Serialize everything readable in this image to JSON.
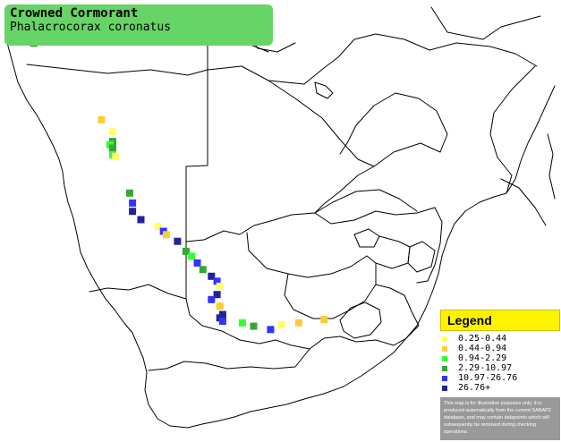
{
  "title": {
    "common_name": "Crowned Cormorant",
    "scientific_name": "Phalacrocorax coronatus"
  },
  "legend": {
    "heading": "Legend",
    "classes": [
      {
        "label": "0.25-0.44",
        "color": "#ffff66"
      },
      {
        "label": "0.44-0.94",
        "color": "#ffcc33"
      },
      {
        "label": "0.94-2.29",
        "color": "#33ff33"
      },
      {
        "label": "2.29-10.97",
        "color": "#33aa33"
      },
      {
        "label": "10.97-26.76",
        "color": "#3333ff"
      },
      {
        "label": "26.76+",
        "color": "#222299"
      }
    ],
    "disclaimer": "This map is for illustrative purposes only; it is produced automatically from the current SABAP2 database, and may contain datapoints which will subsequently be removed during checking operations."
  },
  "map": {
    "region": "Southern Africa",
    "border_color": "#000000",
    "background_color": "#ffffff",
    "record_cells": [
      {
        "lat": -17.6,
        "lon": 11.8,
        "class": 3
      },
      {
        "lat": -22.2,
        "lon": 14.2,
        "class": 1
      },
      {
        "lat": -22.9,
        "lon": 14.6,
        "class": 0
      },
      {
        "lat": -23.5,
        "lon": 14.6,
        "class": 3
      },
      {
        "lat": -23.7,
        "lon": 14.5,
        "class": 2
      },
      {
        "lat": -23.9,
        "lon": 14.6,
        "class": 3
      },
      {
        "lat": -24.3,
        "lon": 14.6,
        "class": 2
      },
      {
        "lat": -24.4,
        "lon": 14.7,
        "class": 0
      },
      {
        "lat": -26.6,
        "lon": 15.2,
        "class": 3
      },
      {
        "lat": -27.2,
        "lon": 15.3,
        "class": 4
      },
      {
        "lat": -27.7,
        "lon": 15.3,
        "class": 5
      },
      {
        "lat": -28.2,
        "lon": 15.6,
        "class": 5
      },
      {
        "lat": -28.6,
        "lon": 16.2,
        "class": 0
      },
      {
        "lat": -28.9,
        "lon": 16.4,
        "class": 4
      },
      {
        "lat": -29.1,
        "lon": 16.5,
        "class": 1
      },
      {
        "lat": -29.5,
        "lon": 16.9,
        "class": 5
      },
      {
        "lat": -30.1,
        "lon": 17.2,
        "class": 3
      },
      {
        "lat": -30.4,
        "lon": 17.4,
        "class": 2
      },
      {
        "lat": -30.8,
        "lon": 17.6,
        "class": 4
      },
      {
        "lat": -31.2,
        "lon": 17.8,
        "class": 3
      },
      {
        "lat": -31.6,
        "lon": 18.1,
        "class": 5
      },
      {
        "lat": -31.9,
        "lon": 18.3,
        "class": 4
      },
      {
        "lat": -32.2,
        "lon": 18.4,
        "class": 0
      },
      {
        "lat": -32.7,
        "lon": 18.3,
        "class": 5
      },
      {
        "lat": -33.0,
        "lon": 18.1,
        "class": 4
      },
      {
        "lat": -33.4,
        "lon": 18.4,
        "class": 1
      },
      {
        "lat": -33.9,
        "lon": 18.5,
        "class": 5
      },
      {
        "lat": -34.1,
        "lon": 18.4,
        "class": 5
      },
      {
        "lat": -34.3,
        "lon": 18.5,
        "class": 4
      },
      {
        "lat": -34.4,
        "lon": 19.2,
        "class": 2
      },
      {
        "lat": -34.6,
        "lon": 19.6,
        "class": 3
      },
      {
        "lat": -34.8,
        "lon": 20.2,
        "class": 4
      },
      {
        "lat": -34.5,
        "lon": 20.6,
        "class": 0
      },
      {
        "lat": -34.4,
        "lon": 21.2,
        "class": 1
      },
      {
        "lat": -34.2,
        "lon": 22.1,
        "class": 1
      }
    ]
  }
}
